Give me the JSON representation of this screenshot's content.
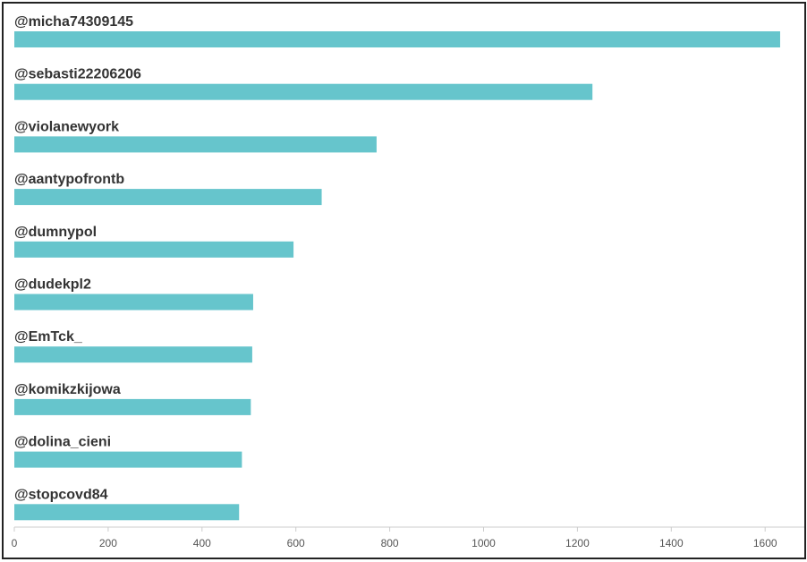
{
  "chart_data": {
    "type": "bar",
    "orientation": "horizontal",
    "title": "",
    "xlabel": "",
    "ylabel": "",
    "categories": [
      "@micha74309145",
      "@sebasti22206206",
      "@violanewyork",
      "@aantypofrontb",
      "@dumnypol",
      "@dudekpl2",
      "@EmTck_",
      "@komikzkijowa",
      "@dolina_cieni",
      "@stopcovd84"
    ],
    "values": [
      1632,
      1232,
      772,
      655,
      595,
      509,
      507,
      504,
      485,
      479
    ],
    "xlim": [
      0,
      1700
    ],
    "xticks": [
      "0",
      "200",
      "400",
      "600",
      "800",
      "1000",
      "1200",
      "1400",
      "1600"
    ],
    "grid": false,
    "legend": "none",
    "bar_color": "#66c5cc",
    "axis_color": "#cccccc"
  }
}
